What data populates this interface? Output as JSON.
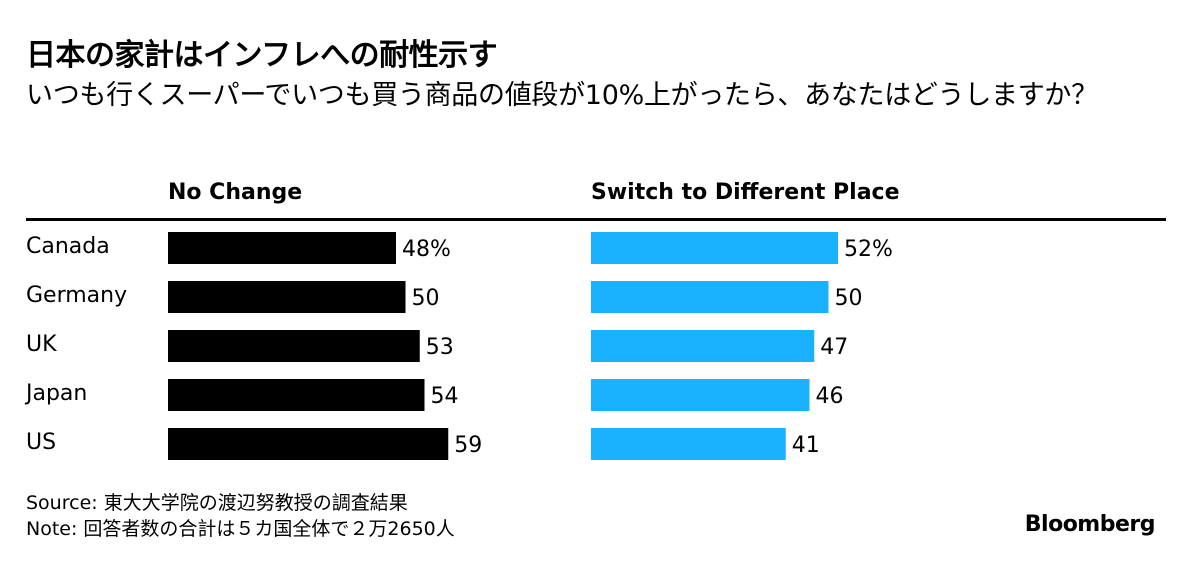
{
  "title": "日本の家計はインフレへの耐性示す",
  "subtitle": "いつも行くスーパーでいつも買う商品の値段が10%上がったら、あなたはどうしますか？",
  "chart_data": {
    "type": "bar",
    "orientation": "horizontal",
    "categories": [
      "Canada",
      "Germany",
      "UK",
      "Japan",
      "US"
    ],
    "series": [
      {
        "name": "No Change",
        "values": [
          48,
          50,
          53,
          54,
          59
        ],
        "labels": [
          "48%",
          "50",
          "53",
          "54",
          "59"
        ],
        "color": "#000000"
      },
      {
        "name": "Switch to Different Place",
        "values": [
          52,
          50,
          47,
          46,
          41
        ],
        "labels": [
          "52%",
          "50",
          "47",
          "46",
          "41"
        ],
        "color": "#1ab2ff"
      }
    ],
    "unit": "%"
  },
  "footer": {
    "source": "Source: 東大大学院の渡辺努教授の調査結果",
    "note": "Note: 回答者数の合計は５カ国全体で２万2650人"
  },
  "brand": "Bloomberg"
}
